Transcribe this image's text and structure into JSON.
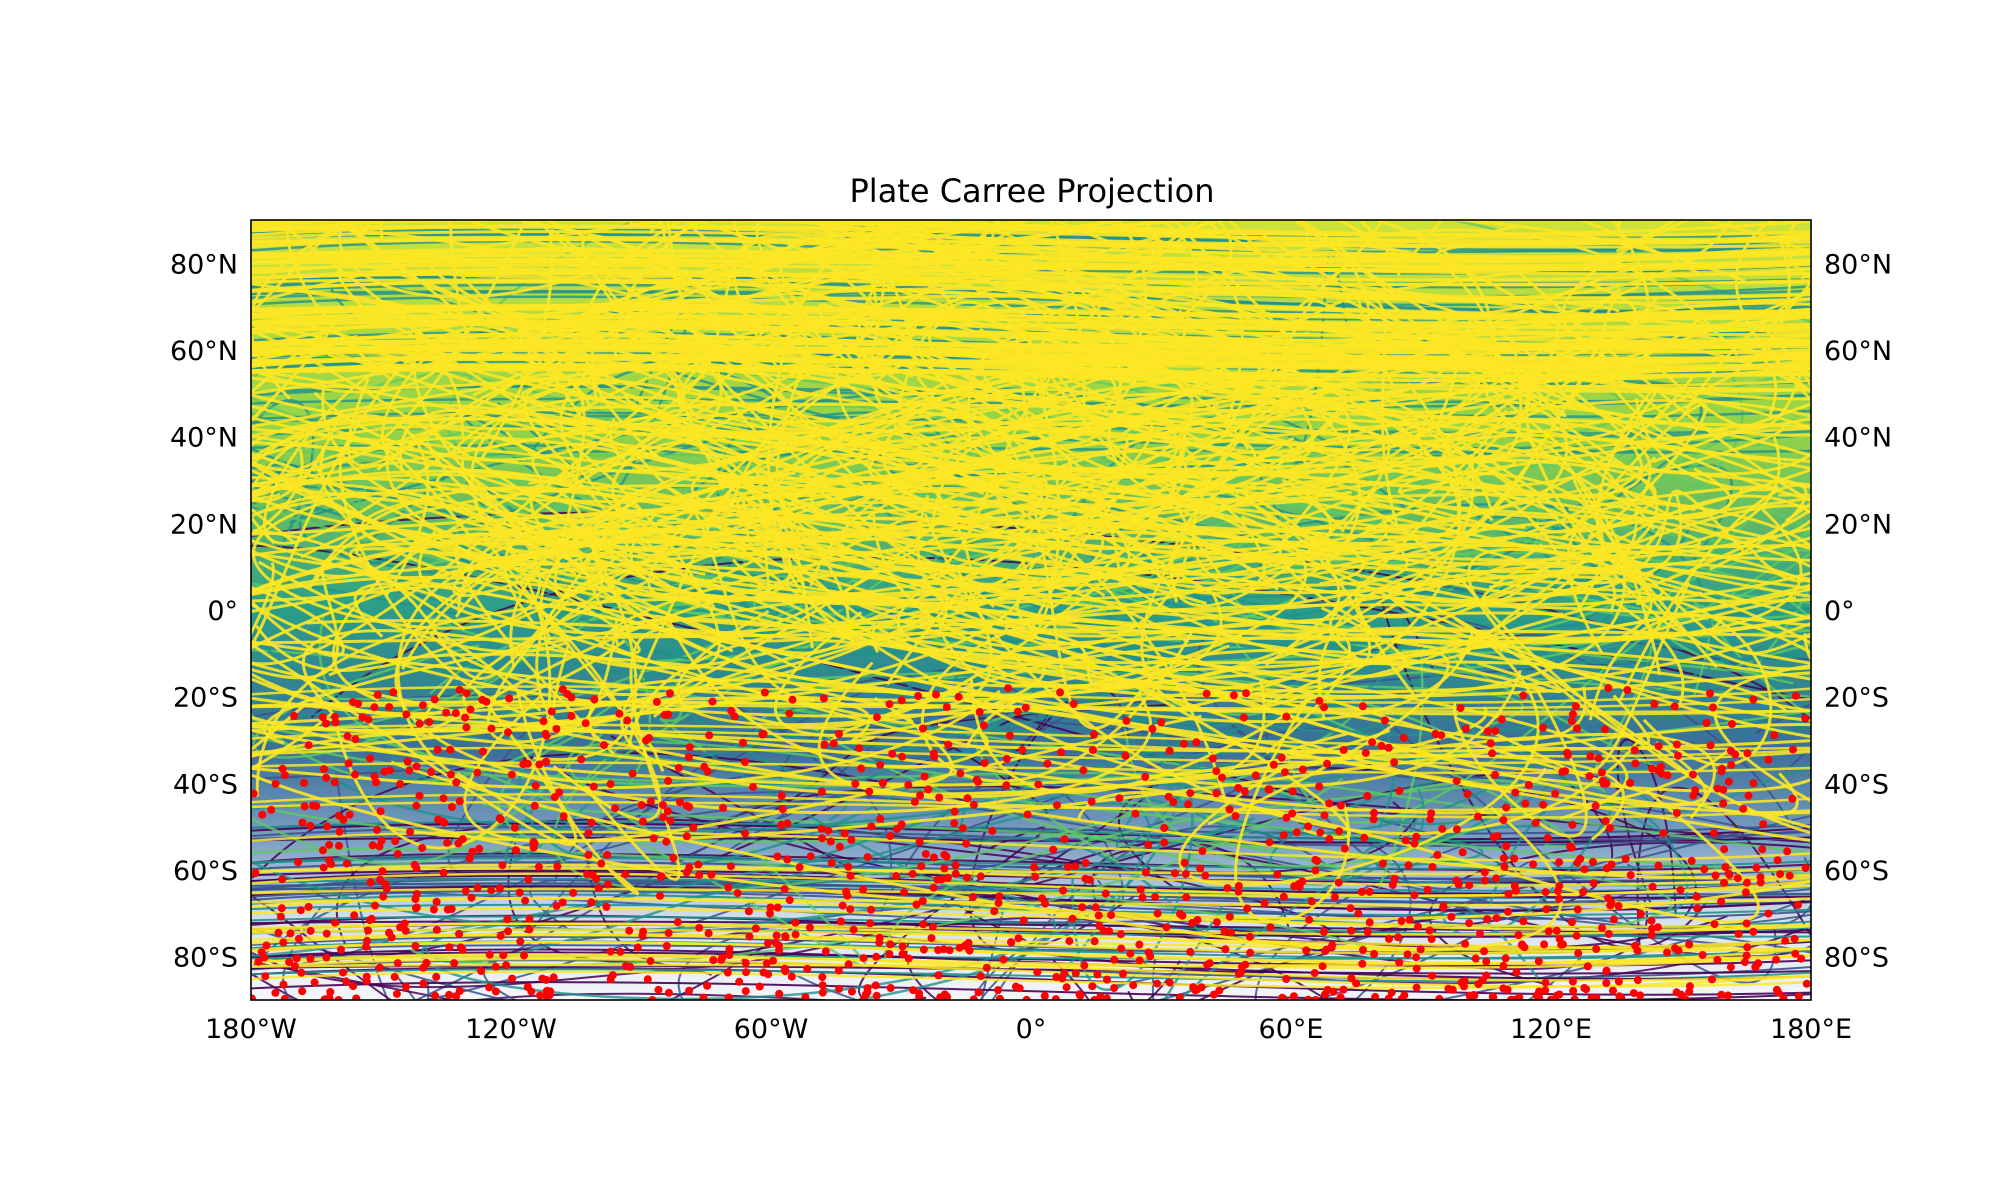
{
  "map": {
    "title": "Plate Carree Projection",
    "projection": "plate-carree",
    "extent": {
      "lon": [
        -180,
        180
      ],
      "lat": [
        -90,
        90
      ]
    },
    "lon_ticks": [
      {
        "value": -180,
        "label": "180°W"
      },
      {
        "value": -120,
        "label": "120°W"
      },
      {
        "value": -60,
        "label": "60°W"
      },
      {
        "value": 0,
        "label": "0°"
      },
      {
        "value": 60,
        "label": "60°E"
      },
      {
        "value": 120,
        "label": "120°E"
      },
      {
        "value": 180,
        "label": "180°E"
      }
    ],
    "lat_ticks": [
      {
        "value": 80,
        "label": "80°N"
      },
      {
        "value": 60,
        "label": "60°N"
      },
      {
        "value": 40,
        "label": "40°N"
      },
      {
        "value": 20,
        "label": "20°N"
      },
      {
        "value": 0,
        "label": "0°"
      },
      {
        "value": -20,
        "label": "20°S"
      },
      {
        "value": -40,
        "label": "40°S"
      },
      {
        "value": -60,
        "label": "60°S"
      },
      {
        "value": -80,
        "label": "80°S"
      }
    ],
    "tick_labels_on": [
      "left",
      "right",
      "bottom"
    ],
    "colors": {
      "track_colormap": [
        "#440154",
        "#3b528b",
        "#21918c",
        "#5ec962",
        "#fde725"
      ],
      "points": "#ff0000",
      "background": "#ffffff",
      "frame": "#000000"
    }
  }
}
